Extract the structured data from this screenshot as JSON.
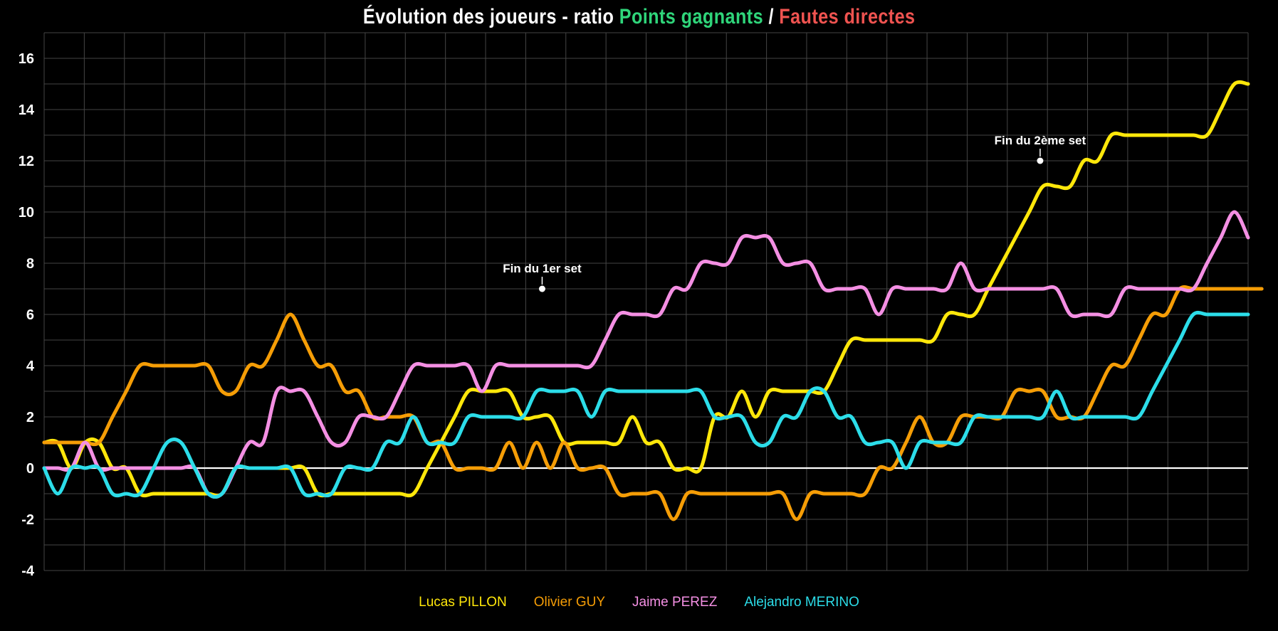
{
  "title": {
    "prefix": "Évolution des joueurs - ratio ",
    "highlight_green": "Points gagnants",
    "separator": " / ",
    "highlight_red": "Fautes directes"
  },
  "colors": {
    "background": "#000000",
    "title_text": "#ffffff",
    "title_green": "#2fd57a",
    "title_red": "#ef5350",
    "grid": "#454545",
    "zero_line": "#ffffff",
    "tick_text": "#ffffff",
    "annotation": "#ffffff"
  },
  "chart_data": {
    "type": "line",
    "title": "Évolution des joueurs - ratio Points gagnants / Fautes directes",
    "xlabel": "",
    "ylabel": "",
    "x_axis": {
      "tick_labels_visible": false,
      "points_per_series": 89
    },
    "y_axis": {
      "ticks": [
        -4,
        -2,
        0,
        2,
        4,
        6,
        8,
        10,
        12,
        14,
        16
      ],
      "range": [
        -4,
        17
      ],
      "grid_step": 1
    },
    "grid": true,
    "legend_position": "bottom-center",
    "series": [
      {
        "name": "Lucas PILLON",
        "color": "#ffe70a",
        "values": [
          1,
          1,
          0,
          1,
          1,
          0,
          0,
          -1,
          -1,
          -1,
          -1,
          -1,
          -1,
          -1,
          0,
          0,
          0,
          0,
          0,
          0,
          -1,
          -1,
          -1,
          -1,
          -1,
          -1,
          -1,
          -1,
          0,
          1,
          2,
          3,
          3,
          3,
          3,
          2,
          2,
          2,
          1,
          1,
          1,
          1,
          1,
          2,
          1,
          1,
          0,
          0,
          0,
          2,
          2,
          3,
          2,
          3,
          3,
          3,
          3,
          3,
          4,
          5,
          5,
          5,
          5,
          5,
          5,
          5,
          6,
          6,
          6,
          7,
          8,
          9,
          10,
          11,
          11,
          11,
          12,
          12,
          13,
          13,
          13,
          13,
          13,
          13,
          13,
          13,
          14,
          15,
          15
        ]
      },
      {
        "name": "Olivier GUY",
        "color": "#f59d06",
        "values": [
          1,
          1,
          1,
          1,
          1,
          2,
          3,
          4,
          4,
          4,
          4,
          4,
          4,
          3,
          3,
          4,
          4,
          5,
          6,
          5,
          4,
          4,
          3,
          3,
          2,
          2,
          2,
          2,
          1,
          1,
          0,
          0,
          0,
          0,
          1,
          0,
          1,
          0,
          1,
          0,
          0,
          0,
          -1,
          -1,
          -1,
          -1,
          -2,
          -1,
          -1,
          -1,
          -1,
          -1,
          -1,
          -1,
          -1,
          -2,
          -1,
          -1,
          -1,
          -1,
          -1,
          0,
          0,
          1,
          2,
          1,
          1,
          2,
          2,
          2,
          2,
          3,
          3,
          3,
          2,
          2,
          2,
          3,
          4,
          4,
          5,
          6,
          6,
          7,
          7,
          7,
          7,
          7,
          7,
          7
        ]
      },
      {
        "name": "Jaime PEREZ",
        "color": "#f48fe3",
        "values": [
          0,
          0,
          0,
          1,
          0,
          0,
          0,
          0,
          0,
          0,
          0,
          0,
          -1,
          -1,
          0,
          1,
          1,
          3,
          3,
          3,
          2,
          1,
          1,
          2,
          2,
          2,
          3,
          4,
          4,
          4,
          4,
          4,
          3,
          4,
          4,
          4,
          4,
          4,
          4,
          4,
          4,
          5,
          6,
          6,
          6,
          6,
          7,
          7,
          8,
          8,
          8,
          9,
          9,
          9,
          8,
          8,
          8,
          7,
          7,
          7,
          7,
          6,
          7,
          7,
          7,
          7,
          7,
          8,
          7,
          7,
          7,
          7,
          7,
          7,
          7,
          6,
          6,
          6,
          6,
          7,
          7,
          7,
          7,
          7,
          7,
          8,
          9,
          10,
          9
        ]
      },
      {
        "name": "Alejandro MERINO",
        "color": "#2cdde9",
        "values": [
          0,
          -1,
          0,
          0,
          0,
          -1,
          -1,
          -1,
          0,
          1,
          1,
          0,
          -1,
          -1,
          0,
          0,
          0,
          0,
          0,
          -1,
          -1,
          -1,
          0,
          0,
          0,
          1,
          1,
          2,
          1,
          1,
          1,
          2,
          2,
          2,
          2,
          2,
          3,
          3,
          3,
          3,
          2,
          3,
          3,
          3,
          3,
          3,
          3,
          3,
          3,
          2,
          2,
          2,
          1,
          1,
          2,
          2,
          3,
          3,
          2,
          2,
          1,
          1,
          1,
          0,
          1,
          1,
          1,
          1,
          2,
          2,
          2,
          2,
          2,
          2,
          3,
          2,
          2,
          2,
          2,
          2,
          2,
          3,
          4,
          5,
          6,
          6,
          6,
          6,
          6
        ]
      }
    ],
    "annotations": [
      {
        "label": "Fin du 1er set",
        "point": 36.4,
        "value": 7
      },
      {
        "label": "Fin du 2ème set",
        "point": 72.8,
        "value": 12
      }
    ]
  }
}
